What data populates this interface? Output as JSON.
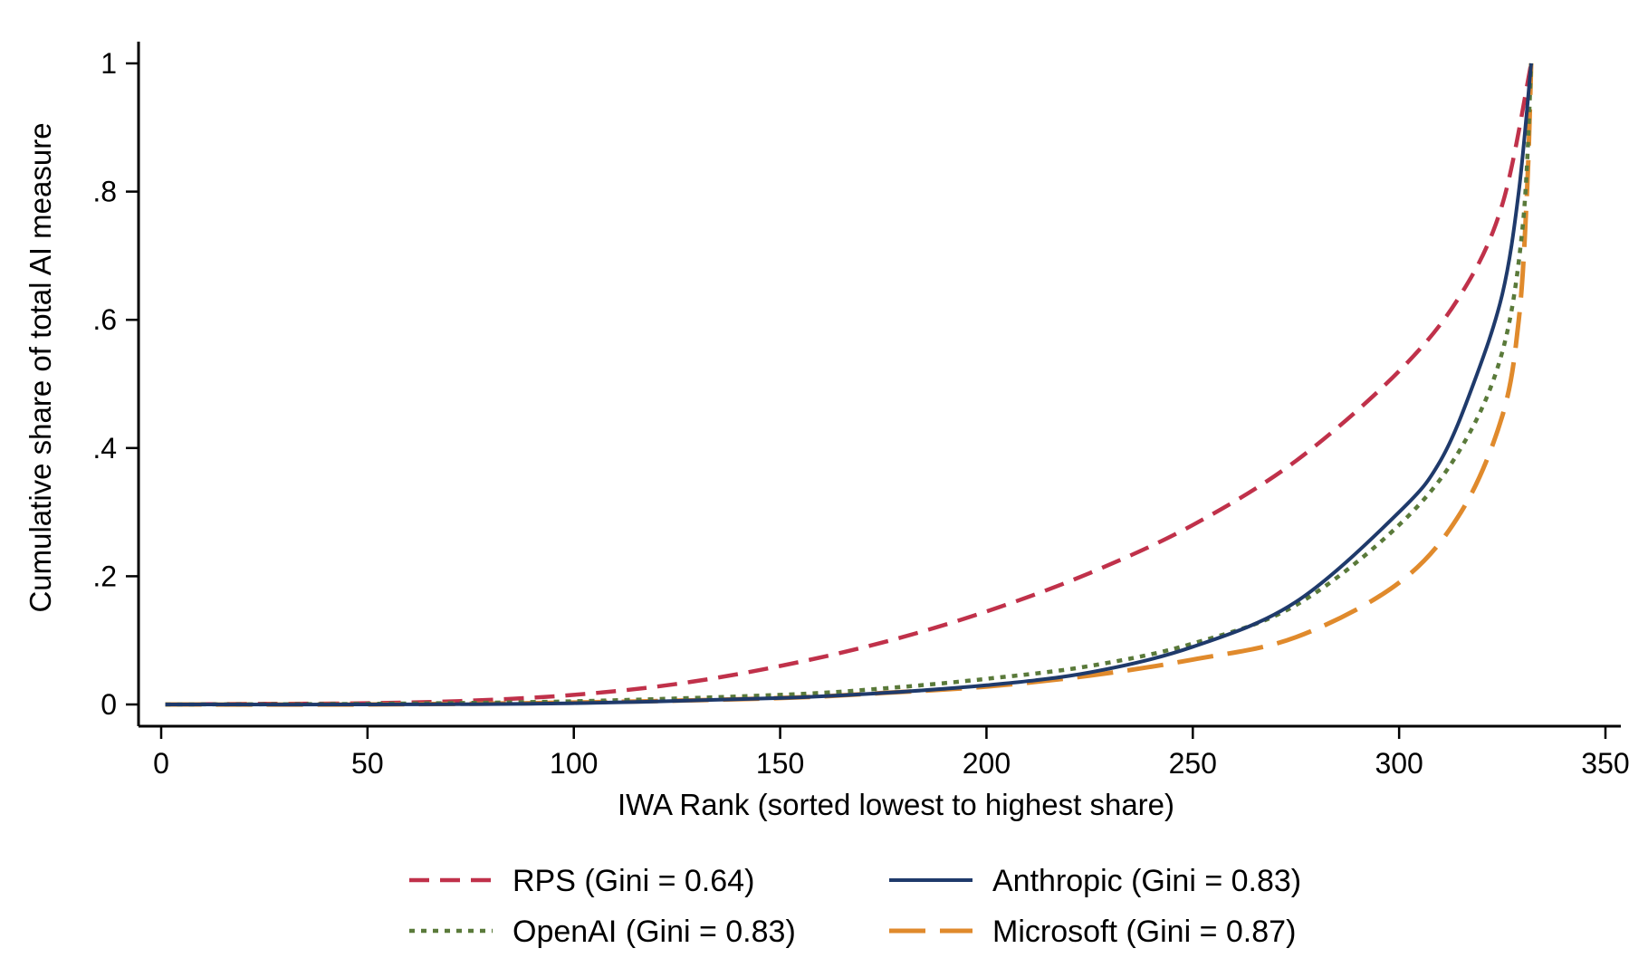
{
  "chart_data": {
    "type": "line",
    "title": "",
    "xlabel": "IWA Rank (sorted lowest to highest share)",
    "ylabel": "Cumulative share of total AI measure",
    "xlim": [
      0,
      350
    ],
    "ylim": [
      0,
      1
    ],
    "x_ticks": [
      {
        "value": 0,
        "label": "0"
      },
      {
        "value": 50,
        "label": "50"
      },
      {
        "value": 100,
        "label": "100"
      },
      {
        "value": 150,
        "label": "150"
      },
      {
        "value": 200,
        "label": "200"
      },
      {
        "value": 250,
        "label": "250"
      },
      {
        "value": 300,
        "label": "300"
      },
      {
        "value": 350,
        "label": "350"
      }
    ],
    "y_ticks": [
      {
        "value": 0,
        "label": "0"
      },
      {
        "value": 0.2,
        "label": ".2"
      },
      {
        "value": 0.4,
        "label": ".4"
      },
      {
        "value": 0.6,
        "label": ".6"
      },
      {
        "value": 0.8,
        "label": ".8"
      },
      {
        "value": 1,
        "label": "1"
      }
    ],
    "grid": false,
    "legend_position": "bottom",
    "series": [
      {
        "name": "RPS (Gini = 0.64)",
        "color": "#c0314a",
        "style": "dashed",
        "x": [
          1,
          25,
          50,
          75,
          100,
          125,
          150,
          175,
          200,
          225,
          250,
          275,
          300,
          315,
          325,
          332
        ],
        "y": [
          0,
          0.001,
          0.002,
          0.006,
          0.015,
          0.032,
          0.06,
          0.097,
          0.145,
          0.205,
          0.28,
          0.38,
          0.52,
          0.64,
          0.78,
          1.0
        ]
      },
      {
        "name": "Anthropic (Gini = 0.83)",
        "color": "#1f3a6b",
        "style": "solid",
        "x": [
          1,
          50,
          100,
          150,
          175,
          200,
          225,
          250,
          275,
          300,
          310,
          318,
          325,
          329,
          332
        ],
        "y": [
          0,
          0,
          0.002,
          0.01,
          0.018,
          0.03,
          0.05,
          0.09,
          0.16,
          0.3,
          0.38,
          0.5,
          0.64,
          0.8,
          1.0
        ]
      },
      {
        "name": "OpenAI (Gini = 0.83)",
        "color": "#5a7a3a",
        "style": "dotted",
        "x": [
          1,
          50,
          100,
          150,
          175,
          200,
          225,
          250,
          275,
          300,
          315,
          325,
          330,
          332
        ],
        "y": [
          0,
          0.001,
          0.005,
          0.015,
          0.025,
          0.04,
          0.06,
          0.095,
          0.155,
          0.28,
          0.4,
          0.55,
          0.75,
          1.0
        ]
      },
      {
        "name": "Microsoft (Gini = 0.87)",
        "color": "#e08a2c",
        "style": "longdash",
        "x": [
          1,
          50,
          100,
          150,
          175,
          200,
          225,
          250,
          275,
          300,
          315,
          325,
          329,
          331,
          332
        ],
        "y": [
          0,
          0,
          0.003,
          0.01,
          0.018,
          0.028,
          0.045,
          0.07,
          0.105,
          0.19,
          0.3,
          0.45,
          0.6,
          0.8,
          1.0
        ]
      }
    ]
  }
}
